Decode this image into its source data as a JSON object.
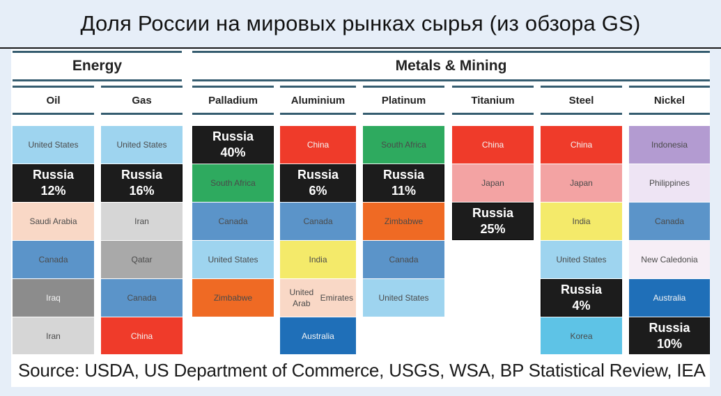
{
  "title": "Доля России на мировых рынках сырья (из обзора GS)",
  "groups": {
    "energy": "Energy",
    "metals": "Metals & Mining"
  },
  "columns": [
    {
      "name": "Oil",
      "cells": [
        {
          "label": "United States",
          "color": "#9ed4ef"
        },
        {
          "label": "Russia\n12%",
          "russia": true
        },
        {
          "label": "Saudi Arabia",
          "color": "#f9d8c6"
        },
        {
          "label": "Canada",
          "color": "#5b94c9"
        },
        {
          "label": "Iraq",
          "color": "#8c8c8c",
          "light": true
        },
        {
          "label": "Iran",
          "color": "#d6d6d6"
        }
      ]
    },
    {
      "name": "Gas",
      "cells": [
        {
          "label": "United States",
          "color": "#9ed4ef"
        },
        {
          "label": "Russia\n16%",
          "russia": true
        },
        {
          "label": "Iran",
          "color": "#d6d6d6"
        },
        {
          "label": "Qatar",
          "color": "#a9a9a9"
        },
        {
          "label": "Canada",
          "color": "#5b94c9"
        },
        {
          "label": "China",
          "color": "#ef3b2a",
          "light": true
        }
      ]
    },
    {
      "name": "Palladium",
      "cells": [
        {
          "label": "Russia\n40%",
          "russia": true
        },
        {
          "label": "South Africa",
          "color": "#2eaa5f"
        },
        {
          "label": "Canada",
          "color": "#5b94c9"
        },
        {
          "label": "United States",
          "color": "#9ed4ef"
        },
        {
          "label": "Zimbabwe",
          "color": "#ef6a24"
        }
      ]
    },
    {
      "name": "Aluminium",
      "cells": [
        {
          "label": "China",
          "color": "#ef3b2a",
          "light": true
        },
        {
          "label": "Russia\n6%",
          "russia": true
        },
        {
          "label": "Canada",
          "color": "#5b94c9"
        },
        {
          "label": "India",
          "color": "#f4ea6a"
        },
        {
          "label": "United Arab\nEmirates",
          "color": "#f9d8c6"
        },
        {
          "label": "Australia",
          "color": "#1f6fb8",
          "light": true
        }
      ]
    },
    {
      "name": "Platinum",
      "cells": [
        {
          "label": "South Africa",
          "color": "#2eaa5f"
        },
        {
          "label": "Russia\n11%",
          "russia": true
        },
        {
          "label": "Zimbabwe",
          "color": "#ef6a24"
        },
        {
          "label": "Canada",
          "color": "#5b94c9"
        },
        {
          "label": "United States",
          "color": "#9ed4ef"
        }
      ]
    },
    {
      "name": "Titanium",
      "cells": [
        {
          "label": "China",
          "color": "#ef3b2a",
          "light": true
        },
        {
          "label": "Japan",
          "color": "#f3a3a3"
        },
        {
          "label": "Russia\n25%",
          "russia": true
        }
      ]
    },
    {
      "name": "Steel",
      "cells": [
        {
          "label": "China",
          "color": "#ef3b2a",
          "light": true
        },
        {
          "label": "Japan",
          "color": "#f3a3a3"
        },
        {
          "label": "India",
          "color": "#f4ea6a"
        },
        {
          "label": "United States",
          "color": "#9ed4ef"
        },
        {
          "label": "Russia\n4%",
          "russia": true
        },
        {
          "label": "Korea",
          "color": "#5ec3e6"
        }
      ]
    },
    {
      "name": "Nickel",
      "cells": [
        {
          "label": "Indonesia",
          "color": "#b39bd1"
        },
        {
          "label": "Philippines",
          "color": "#eee4f4"
        },
        {
          "label": "Canada",
          "color": "#5b94c9"
        },
        {
          "label": "New Caledonia",
          "color": "#f6eef6"
        },
        {
          "label": "Australia",
          "color": "#1f6fb8",
          "light": true
        },
        {
          "label": "Russia\n10%",
          "russia": true
        }
      ]
    }
  ],
  "source": "Source: USDA, US Department of Commerce, USGS, WSA, BP Statistical Review, IEA"
}
